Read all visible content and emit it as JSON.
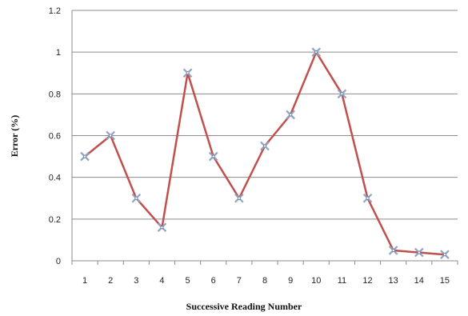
{
  "chart_data": {
    "type": "line",
    "xlabel": "Successive Reading Number",
    "ylabel": "Error (%)",
    "ylim": [
      0,
      1.2
    ],
    "yticks": [
      "0",
      "0.2",
      "0.4",
      "0.6",
      "0.8",
      "1",
      "1.2"
    ],
    "x": [
      "1",
      "2",
      "3",
      "4",
      "5",
      "6",
      "7",
      "8",
      "9",
      "10",
      "11",
      "12",
      "13",
      "14",
      "15"
    ],
    "series": [
      {
        "values": [
          0.5,
          0.6,
          0.3,
          0.16,
          0.9,
          0.5,
          0.3,
          0.55,
          0.7,
          1.0,
          0.8,
          0.3,
          0.05,
          0.04,
          0.03
        ]
      }
    ],
    "grid": "horizontal",
    "legend": "none",
    "colors": {
      "line": "#c0504d",
      "marker": "#8fa3c4",
      "grid": "#8c8c8c",
      "axis": "#8c8c8c"
    }
  }
}
